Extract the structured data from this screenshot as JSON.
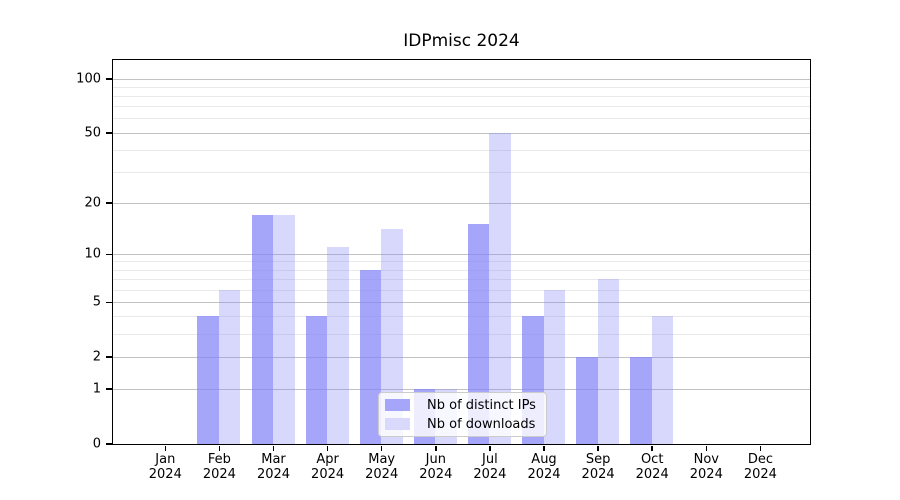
{
  "title": "IDPmisc 2024",
  "chart_data": {
    "type": "bar",
    "title": "IDPmisc 2024",
    "categories": [
      "Jan",
      "Feb",
      "Mar",
      "Apr",
      "May",
      "Jun",
      "Jul",
      "Aug",
      "Sep",
      "Oct",
      "Nov",
      "Dec"
    ],
    "year_label": "2024",
    "series": [
      {
        "name": "Nb of distinct IPs",
        "values": [
          0,
          4,
          17,
          4,
          8,
          1,
          15,
          4,
          2,
          2,
          0,
          0
        ],
        "color": "rgba(130,130,248,0.72)",
        "solid_color": "#a5a5fa"
      },
      {
        "name": "Nb of downloads",
        "values": [
          0,
          6,
          17,
          11,
          14,
          1,
          50,
          6,
          7,
          4,
          0,
          0
        ],
        "color": "rgba(130,130,248,0.31)",
        "solid_color": "#d9d9fc"
      }
    ],
    "y_scale": "log10(1+v)",
    "y_ticks": [
      0,
      1,
      2,
      5,
      10,
      20,
      50,
      100
    ],
    "y_minor_ticks": [
      3,
      4,
      6,
      7,
      8,
      9,
      30,
      40,
      60,
      70,
      80,
      90
    ],
    "ylim": [
      0,
      127.5
    ],
    "xlabel": "",
    "ylabel": "",
    "grid": true,
    "legend_position": "inside-bottom-center"
  },
  "style": {
    "background": "#ffffff",
    "text_color": "#000000",
    "axis_color": "#000000",
    "grid_major_color": "#c2c2c2",
    "grid_minor_color": "#e9e9e9",
    "legend_border_color": "#cccccc"
  }
}
